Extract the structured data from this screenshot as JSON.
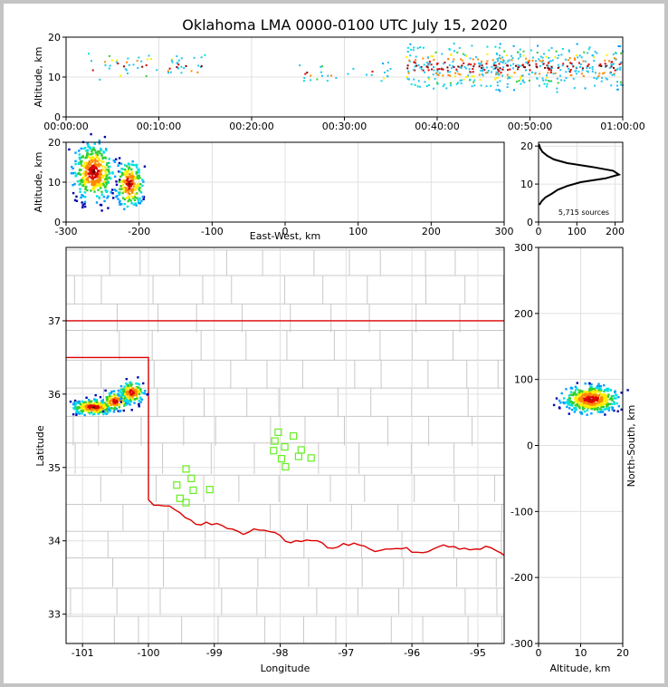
{
  "chart_data": [
    {
      "panel": "time-height",
      "type": "scatter",
      "title": "Oklahoma LMA 0000-0100 UTC July 15, 2020",
      "ylabel": "Altitude, km",
      "ylim": [
        0,
        20
      ],
      "xlim": [
        0,
        3600
      ],
      "yticks": [
        0,
        10,
        20
      ],
      "x_tick_labels": [
        "00:00:00",
        "00:10:00",
        "00:20:00",
        "00:30:00",
        "00:40:00",
        "00:50:00",
        "01:00:00"
      ],
      "x_ticks_seconds": [
        0,
        600,
        1200,
        1800,
        2400,
        3000,
        3600
      ],
      "clusters": [
        {
          "t": [
            120,
            900
          ],
          "alt": [
            8,
            17
          ],
          "n": 60,
          "color": "#22c5ee"
        },
        {
          "t": [
            1500,
            2100
          ],
          "alt": [
            8,
            14
          ],
          "n": 30,
          "color": "#22c5ee"
        },
        {
          "t": [
            2200,
            3600
          ],
          "alt": [
            6,
            19
          ],
          "n": 520,
          "color": "#22c5ee"
        }
      ]
    },
    {
      "panel": "east-west-altitude",
      "type": "scatter",
      "xlabel": "East-West, km",
      "ylabel": "Altitude, km",
      "xlim": [
        -300,
        300
      ],
      "ylim": [
        0,
        20
      ],
      "xticks": [
        -300,
        -200,
        -100,
        0,
        100,
        200,
        300
      ],
      "yticks": [
        0,
        10,
        20
      ],
      "clusters": [
        {
          "cx": -262,
          "cy": 12.5,
          "sx": 13,
          "sy": 3.5,
          "n": 380
        },
        {
          "cx": -213,
          "cy": 9.5,
          "sx": 9,
          "sy": 2.8,
          "n": 200
        }
      ]
    },
    {
      "panel": "altitude-histogram",
      "type": "line",
      "xlim": [
        0,
        220
      ],
      "ylim": [
        0,
        21
      ],
      "xticks": [
        0,
        100,
        200
      ],
      "yticks": [
        0,
        10,
        20
      ],
      "annotation": "5,715 sources",
      "altitude": [
        20.5,
        19.5,
        18.5,
        17.5,
        16.5,
        15.5,
        14.5,
        13.5,
        12.5,
        11.5,
        10.5,
        9.5,
        8.5,
        7.5,
        6.5,
        5.5,
        4.5
      ],
      "count": [
        1,
        4,
        10,
        22,
        40,
        75,
        140,
        195,
        210,
        175,
        110,
        75,
        50,
        35,
        18,
        8,
        2
      ]
    },
    {
      "panel": "plan-view-map",
      "type": "scatter",
      "xlabel": "Longitude",
      "ylabel": "Latitude",
      "xlim": [
        -101.25,
        -94.6
      ],
      "ylim": [
        32.6,
        38.0
      ],
      "xticks": [
        -101,
        -100,
        -99,
        -98,
        -97,
        -96,
        -95
      ],
      "yticks": [
        33,
        34,
        35,
        36,
        37
      ],
      "stations": [
        [
          -98.03,
          35.48
        ],
        [
          -97.8,
          35.43
        ],
        [
          -98.08,
          35.36
        ],
        [
          -97.93,
          35.28
        ],
        [
          -98.1,
          35.23
        ],
        [
          -97.68,
          35.24
        ],
        [
          -97.98,
          35.12
        ],
        [
          -97.72,
          35.15
        ],
        [
          -97.53,
          35.13
        ],
        [
          -97.92,
          35.01
        ],
        [
          -99.43,
          34.98
        ],
        [
          -99.35,
          34.85
        ],
        [
          -99.57,
          34.76
        ],
        [
          -99.32,
          34.69
        ],
        [
          -99.07,
          34.7
        ],
        [
          -99.52,
          34.58
        ],
        [
          -99.43,
          34.52
        ]
      ],
      "clusters": [
        {
          "cx": -100.83,
          "cy": 35.82,
          "sx": 0.16,
          "sy": 0.05,
          "n": 260
        },
        {
          "cx": -100.5,
          "cy": 35.9,
          "sx": 0.1,
          "sy": 0.06,
          "n": 120
        },
        {
          "cx": -100.25,
          "cy": 36.02,
          "sx": 0.09,
          "sy": 0.07,
          "n": 160
        }
      ]
    },
    {
      "panel": "altitude-north-south",
      "type": "scatter",
      "xlabel": "Altitude, km",
      "ylabel": "North-South, km",
      "xlim": [
        0,
        20
      ],
      "ylim": [
        -300,
        300
      ],
      "xticks": [
        0,
        10,
        20
      ],
      "yticks": [
        -300,
        -200,
        -100,
        0,
        100,
        200,
        300
      ],
      "clusters": [
        {
          "cx": 12.5,
          "cy": 70,
          "sx": 3.2,
          "sy": 10,
          "n": 480
        }
      ]
    }
  ],
  "colorscale": [
    "#0000aa",
    "#00a0ff",
    "#00e0e0",
    "#30d030",
    "#ffee00",
    "#ff8800",
    "#dd0000",
    "#800000"
  ]
}
